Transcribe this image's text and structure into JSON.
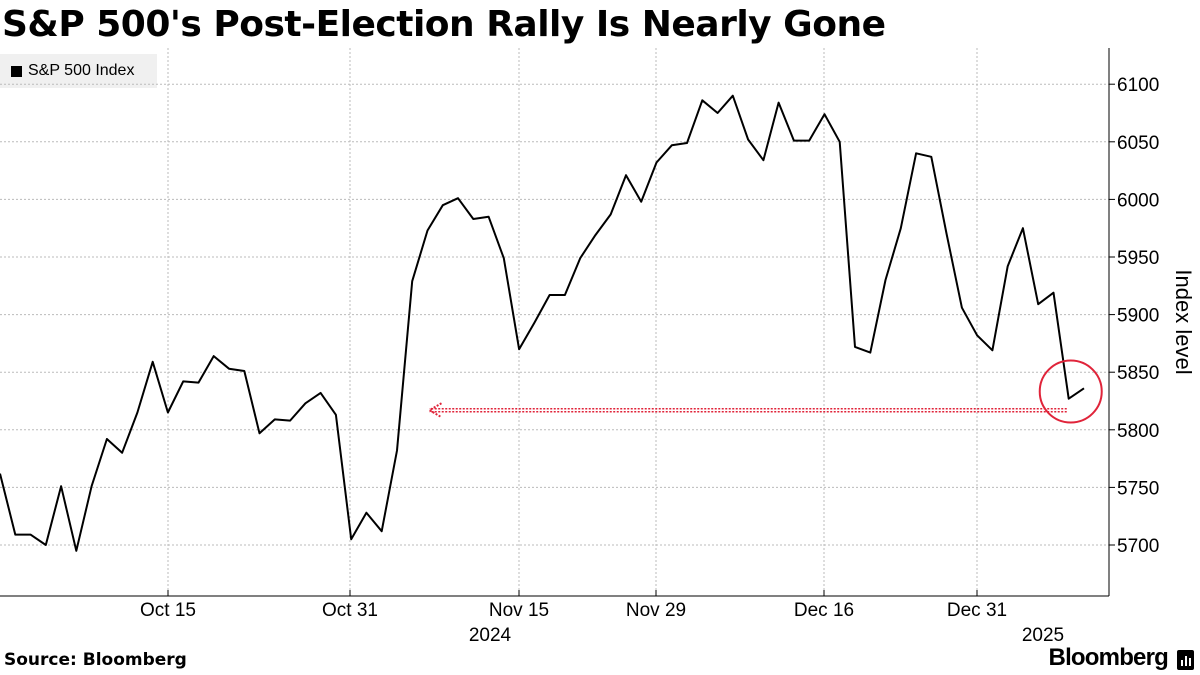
{
  "title": "S&P 500's Post-Election Rally Is Nearly Gone",
  "legend": {
    "label": "S&P 500 Index"
  },
  "source": "Source: Bloomberg",
  "brand": "Bloomberg",
  "colors": {
    "line": "#000000",
    "annotation": "#e0243a",
    "grid": "#bbbbbb",
    "legend_bg": "#f0f0f0"
  },
  "chart_data": {
    "type": "line",
    "title": "S&P 500's Post-Election Rally Is Nearly Gone",
    "ylabel": "Index level",
    "xlabel": "",
    "ylim": [
      5650,
      6130
    ],
    "yticks": [
      5700,
      5750,
      5800,
      5850,
      5900,
      5950,
      6000,
      6050,
      6100
    ],
    "x_tick_labels": [
      "Oct 15",
      "Oct 31",
      "Nov 15",
      "Nov 29",
      "Dec 16",
      "Dec 31"
    ],
    "x_year_labels": [
      "2024",
      "2025"
    ],
    "legend": "top-left",
    "grid": true,
    "series": [
      {
        "name": "S&P 500 Index",
        "values": [
          5762,
          5709,
          5709,
          5700,
          5751,
          5695,
          5751,
          5792,
          5780,
          5815,
          5859,
          5815,
          5842,
          5841,
          5864,
          5853,
          5851,
          5797,
          5809,
          5808,
          5823,
          5832,
          5813,
          5705,
          5728,
          5712,
          5782,
          5929,
          5973,
          5995,
          6001,
          5983,
          5985,
          5949,
          5870,
          5893,
          5917,
          5917,
          5949,
          5969,
          5987,
          6021,
          5998,
          6032,
          6047,
          6049,
          6086,
          6075,
          6090,
          6052,
          6034,
          6084,
          6051,
          6051,
          6074,
          6050,
          5872,
          5867,
          5930,
          5975,
          6040,
          6037,
          5970,
          5906,
          5882,
          5869,
          5942,
          5975,
          5909,
          5919,
          5827,
          5836
        ]
      }
    ],
    "annotations": [
      {
        "type": "arrow",
        "from_index": 70,
        "to_index": 28,
        "y_value": 5817
      },
      {
        "type": "circle",
        "index": 70,
        "y_value": 5835
      }
    ]
  }
}
